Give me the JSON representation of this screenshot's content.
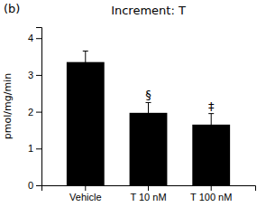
{
  "chart_data": {
    "type": "bar",
    "title": "Increment: T",
    "panel_label": "(b)",
    "categories": [
      "Vehicle",
      "T 10 nM",
      "T 100 nM"
    ],
    "values": [
      3.35,
      1.97,
      1.65
    ],
    "errors": [
      0.3,
      0.28,
      0.3
    ],
    "significance": [
      null,
      "§",
      "‡"
    ],
    "color": "#000000",
    "ylabel": "pmol/mg/min",
    "ylim": [
      0,
      4.3
    ],
    "yticks": [
      0,
      1,
      2,
      3,
      4
    ],
    "grid": false
  }
}
